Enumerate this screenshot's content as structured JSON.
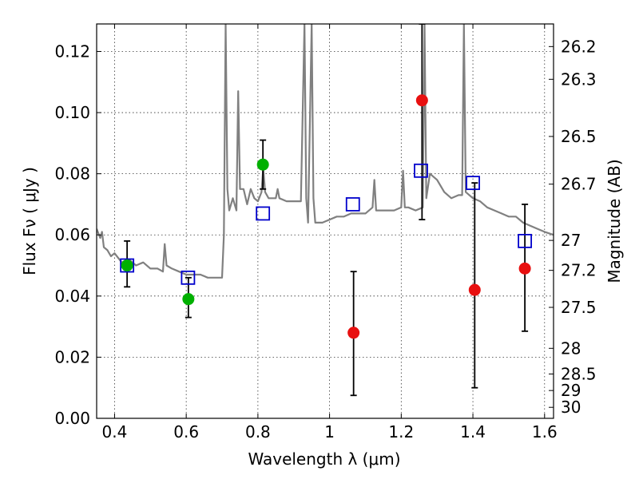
{
  "chart_data": {
    "type": "scatter",
    "title": "",
    "xlabel": "Wavelength  λ (μm)",
    "ylabel": "Flux  Fν  ( μJy )",
    "ylabel_right": "Magnitude (AB)",
    "xlim": [
      0.35,
      1.625
    ],
    "ylim": [
      0.0,
      0.129
    ],
    "xticks": [
      0.4,
      0.6,
      0.8,
      1.0,
      1.2,
      1.4,
      1.6
    ],
    "xtick_labels": [
      "0.4",
      "0.6",
      "0.8",
      "1",
      "1.2",
      "1.4",
      "1.6"
    ],
    "yticks": [
      0.0,
      0.02,
      0.04,
      0.06,
      0.08,
      0.1,
      0.12
    ],
    "ytick_labels": [
      "0.00",
      "0.02",
      "0.04",
      "0.06",
      "0.08",
      "0.10",
      "0.12"
    ],
    "right_axis_ticks": [
      {
        "label": "26.2",
        "flux": 0.1216
      },
      {
        "label": "26.3",
        "flux": 0.1109
      },
      {
        "label": "26.5",
        "flux": 0.0922
      },
      {
        "label": "26.7",
        "flux": 0.0766
      },
      {
        "label": "27",
        "flux": 0.0582
      },
      {
        "label": "27.2",
        "flux": 0.0484
      },
      {
        "label": "27.5",
        "flux": 0.0363
      },
      {
        "label": "28",
        "flux": 0.0229
      },
      {
        "label": "28.5",
        "flux": 0.0145
      },
      {
        "label": "29",
        "flux": 0.0091
      },
      {
        "label": "30",
        "flux": 0.0036
      }
    ],
    "grid": true,
    "colors": {
      "model": "#808080",
      "green": "#00b000",
      "red": "#e81010",
      "square": "#0000cc",
      "errorbar": "#000000"
    },
    "series": [
      {
        "kind": "model-spectrum",
        "x": [
          0.35,
          0.36,
          0.365,
          0.37,
          0.38,
          0.39,
          0.4,
          0.42,
          0.44,
          0.46,
          0.48,
          0.5,
          0.52,
          0.535,
          0.54,
          0.545,
          0.56,
          0.58,
          0.6,
          0.62,
          0.64,
          0.66,
          0.68,
          0.7,
          0.705,
          0.71,
          0.715,
          0.72,
          0.73,
          0.74,
          0.745,
          0.75,
          0.76,
          0.77,
          0.78,
          0.79,
          0.8,
          0.81,
          0.815,
          0.82,
          0.83,
          0.84,
          0.85,
          0.855,
          0.86,
          0.88,
          0.9,
          0.92,
          0.93,
          0.935,
          0.94,
          0.95,
          0.955,
          0.96,
          0.98,
          1.0,
          1.02,
          1.04,
          1.06,
          1.08,
          1.1,
          1.12,
          1.125,
          1.13,
          1.15,
          1.18,
          1.2,
          1.205,
          1.21,
          1.22,
          1.24,
          1.26,
          1.265,
          1.27,
          1.28,
          1.3,
          1.32,
          1.34,
          1.36,
          1.37,
          1.375,
          1.38,
          1.4,
          1.42,
          1.44,
          1.46,
          1.48,
          1.5,
          1.52,
          1.54,
          1.56,
          1.58,
          1.6,
          1.625
        ],
        "y": [
          0.062,
          0.059,
          0.061,
          0.056,
          0.055,
          0.053,
          0.054,
          0.051,
          0.052,
          0.05,
          0.051,
          0.049,
          0.049,
          0.048,
          0.057,
          0.05,
          0.049,
          0.048,
          0.047,
          0.047,
          0.047,
          0.046,
          0.046,
          0.046,
          0.06,
          0.129,
          0.075,
          0.068,
          0.072,
          0.068,
          0.107,
          0.075,
          0.075,
          0.07,
          0.075,
          0.072,
          0.071,
          0.074,
          0.082,
          0.074,
          0.072,
          0.072,
          0.072,
          0.075,
          0.072,
          0.071,
          0.071,
          0.071,
          0.129,
          0.072,
          0.064,
          0.129,
          0.072,
          0.064,
          0.064,
          0.065,
          0.066,
          0.066,
          0.067,
          0.067,
          0.067,
          0.069,
          0.078,
          0.068,
          0.068,
          0.068,
          0.069,
          0.081,
          0.069,
          0.069,
          0.068,
          0.069,
          0.129,
          0.072,
          0.08,
          0.078,
          0.074,
          0.072,
          0.073,
          0.073,
          0.129,
          0.074,
          0.072,
          0.071,
          0.069,
          0.068,
          0.067,
          0.066,
          0.066,
          0.064,
          0.063,
          0.062,
          0.061,
          0.06
        ]
      },
      {
        "kind": "model-photometry",
        "marker": "open-square",
        "x": [
          0.435,
          0.605,
          0.814,
          1.065,
          1.255,
          1.4,
          1.545
        ],
        "y": [
          0.05,
          0.046,
          0.067,
          0.07,
          0.081,
          0.077,
          0.058
        ]
      },
      {
        "kind": "observed-detection",
        "marker": "filled-circle",
        "color": "green",
        "x": [
          0.435,
          0.606,
          0.814
        ],
        "y": [
          0.05,
          0.039,
          0.083
        ],
        "yerr_low": [
          0.043,
          0.033,
          0.075
        ],
        "yerr_high": [
          0.058,
          0.046,
          0.091
        ]
      },
      {
        "kind": "observed-upper",
        "marker": "filled-circle",
        "color": "red",
        "x": [
          1.067,
          1.258,
          1.405,
          1.545
        ],
        "y": [
          0.028,
          0.104,
          0.042,
          0.049
        ],
        "yerr_low": [
          0.0075,
          0.065,
          0.01,
          0.0285
        ],
        "yerr_high": [
          0.048,
          0.129,
          0.077,
          0.07
        ]
      }
    ]
  }
}
